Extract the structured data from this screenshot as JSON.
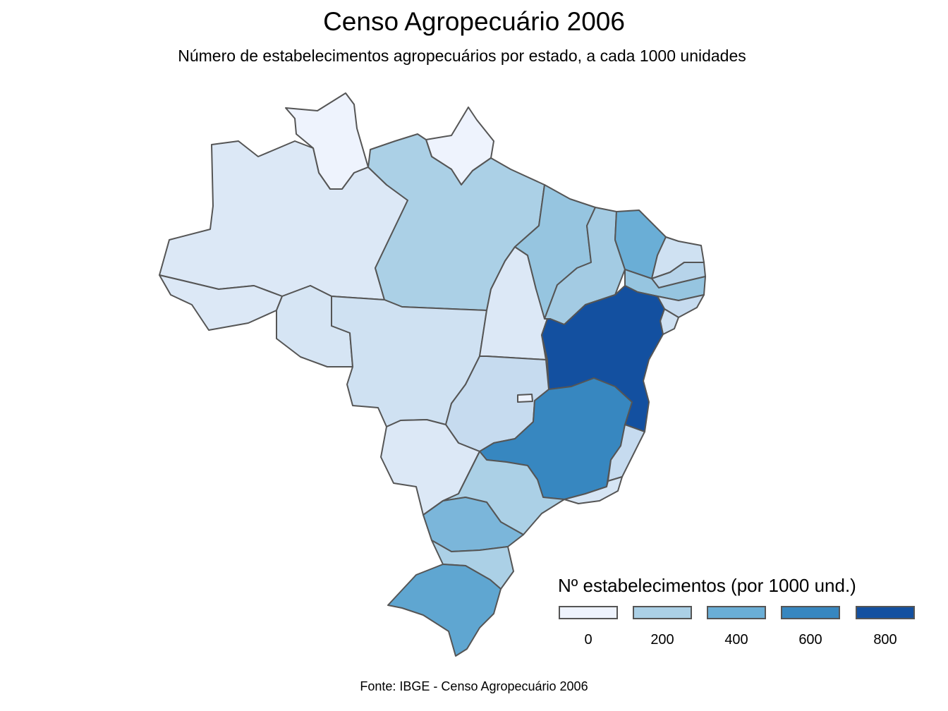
{
  "title": "Censo Agropecuário 2006",
  "subtitle": "Número de estabelecimentos agropecuários por estado, a cada 1000 unidades",
  "caption": "Fonte: IBGE - Censo Agropecuário 2006",
  "legend": {
    "title": "Nº estabelecimentos (por 1000 und.)",
    "labels": [
      "0",
      "200",
      "400",
      "600",
      "800"
    ],
    "colors": [
      "#eef3fd",
      "#abd0e6",
      "#6aaed6",
      "#3787c0",
      "#1350a0"
    ]
  },
  "colors": {
    "border": "#555555",
    "background": "#ffffff"
  },
  "map": {
    "type": "choropleth",
    "regions": [
      {
        "state": "RR",
        "color": "#eef3fd"
      },
      {
        "state": "AP",
        "color": "#eef3fd"
      },
      {
        "state": "AM",
        "color": "#dce8f6"
      },
      {
        "state": "AC",
        "color": "#dce8f6"
      },
      {
        "state": "RO",
        "color": "#d6e5f4"
      },
      {
        "state": "PA",
        "color": "#abd0e6"
      },
      {
        "state": "MT",
        "color": "#cfe1f2"
      },
      {
        "state": "TO",
        "color": "#dce8f6"
      },
      {
        "state": "MA",
        "color": "#96c5e0"
      },
      {
        "state": "PI",
        "color": "#a3cbe3"
      },
      {
        "state": "CE",
        "color": "#6aaed6"
      },
      {
        "state": "RN",
        "color": "#cfe1f2"
      },
      {
        "state": "PB",
        "color": "#b7d4ea"
      },
      {
        "state": "PE",
        "color": "#96c5e0"
      },
      {
        "state": "AL",
        "color": "#c6dbef"
      },
      {
        "state": "SE",
        "color": "#cfe1f2"
      },
      {
        "state": "BA",
        "color": "#1350a0"
      },
      {
        "state": "GO",
        "color": "#c6dbef"
      },
      {
        "state": "DF",
        "color": "#eef3fd"
      },
      {
        "state": "MS",
        "color": "#dce8f6"
      },
      {
        "state": "MG",
        "color": "#3787c0"
      },
      {
        "state": "ES",
        "color": "#c6dbef"
      },
      {
        "state": "RJ",
        "color": "#d6e5f4"
      },
      {
        "state": "SP",
        "color": "#abd0e6"
      },
      {
        "state": "PR",
        "color": "#7bb6da"
      },
      {
        "state": "SC",
        "color": "#abd0e6"
      },
      {
        "state": "RS",
        "color": "#5fa6d1"
      }
    ]
  }
}
